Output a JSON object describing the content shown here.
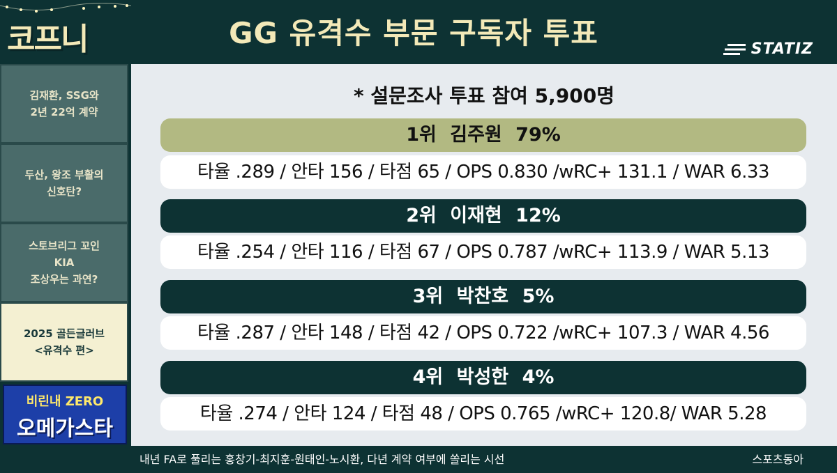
{
  "logo": {
    "text": "코프니"
  },
  "header": {
    "title": "GG 유격수 부문 구독자 투표",
    "brand": "STATIZ"
  },
  "sidebar": {
    "items": [
      {
        "label": "김재환, SSG와\n2년 22억 계약",
        "active": false
      },
      {
        "label": "두산, 왕조 부활의\n신호탄?",
        "active": false
      },
      {
        "label": "스토브리그 꼬인\nKIA\n조상우는 과연?",
        "active": false
      },
      {
        "label": "2025 골든글러브\n<유격수 편>",
        "active": true
      }
    ]
  },
  "ad": {
    "line1": "비린내 ZERO",
    "line2": "오메가스타"
  },
  "main": {
    "subtitle": "* 설문조사 투표 참여 5,900명",
    "rankings": [
      {
        "rank": "1위",
        "name": "김주원",
        "pct": "79%",
        "stats": "타율 .289 / 안타 156 / 타점 65 / OPS 0.830 /wRC+ 131.1 / WAR 6.33"
      },
      {
        "rank": "2위",
        "name": "이재현",
        "pct": "12%",
        "stats": "타율 .254 / 안타 116 / 타점 67 / OPS 0.787 /wRC+ 113.9 / WAR 5.13"
      },
      {
        "rank": "3위",
        "name": "박찬호",
        "pct": "5%",
        "stats": "타율 .287 / 안타 148 / 타점 42 / OPS 0.722 /wRC+ 107.3 / WAR 4.56"
      },
      {
        "rank": "4위",
        "name": "박성한",
        "pct": "4%",
        "stats": "타율 .274 / 안타 124 / 타점 48 / OPS 0.765 /wRC+ 120.8/ WAR 5.28"
      }
    ]
  },
  "footer": {
    "ticker": "내년 FA로 풀리는 홍창기-최지훈-원태인-노시환, 다년 계약 여부에 쏠리는 시선",
    "source": "스포츠동아"
  }
}
